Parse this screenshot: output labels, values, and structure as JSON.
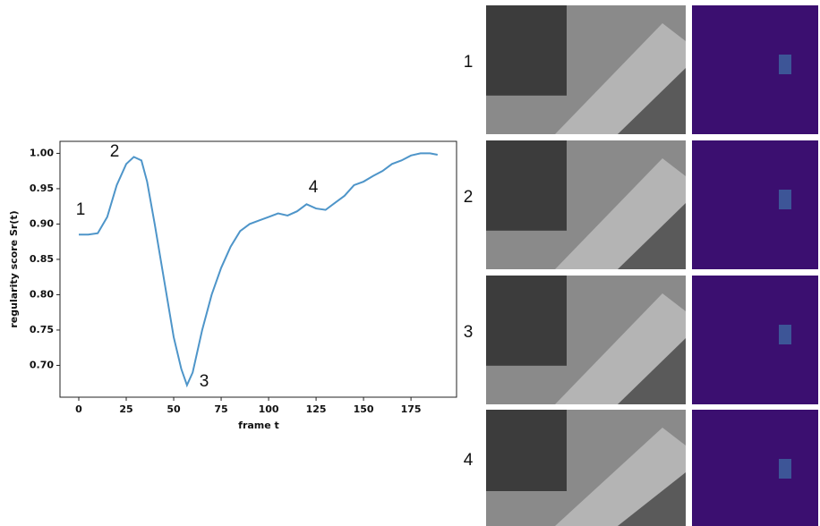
{
  "chart_data": {
    "type": "line",
    "xlabel": "frame t",
    "ylabel": "regularity score Sr(t)",
    "x": [
      0,
      5,
      10,
      15,
      20,
      25,
      29,
      33,
      36,
      40,
      45,
      50,
      54,
      57,
      60,
      65,
      70,
      75,
      80,
      85,
      90,
      95,
      100,
      105,
      110,
      115,
      120,
      125,
      130,
      135,
      140,
      145,
      150,
      155,
      160,
      165,
      170,
      175,
      180,
      185,
      189
    ],
    "values": [
      0.885,
      0.885,
      0.887,
      0.91,
      0.955,
      0.985,
      0.995,
      0.99,
      0.96,
      0.9,
      0.82,
      0.74,
      0.695,
      0.672,
      0.69,
      0.75,
      0.8,
      0.838,
      0.868,
      0.89,
      0.9,
      0.905,
      0.91,
      0.915,
      0.912,
      0.918,
      0.928,
      0.922,
      0.92,
      0.93,
      0.94,
      0.955,
      0.96,
      0.968,
      0.975,
      0.985,
      0.99,
      0.997,
      1.0,
      1.0,
      0.998
    ],
    "color": "#4e95c9",
    "xlim": [
      -9.9,
      199
    ],
    "ylim": [
      0.655,
      1.017
    ],
    "xticks": [
      0,
      25,
      50,
      75,
      100,
      125,
      150,
      175
    ],
    "yticks": [
      {
        "value": 0.7,
        "label": "0.70"
      },
      0.75,
      {
        "value": 0.8,
        "label": "0.80"
      },
      0.85,
      {
        "value": 0.9,
        "label": "0.90"
      },
      0.95,
      {
        "value": 1.0,
        "label": "1.00"
      }
    ],
    "annotations": [
      "1",
      "2",
      "3",
      "4"
    ]
  },
  "panels": {
    "row_labels": [
      "1",
      "2",
      "3",
      "4"
    ]
  }
}
